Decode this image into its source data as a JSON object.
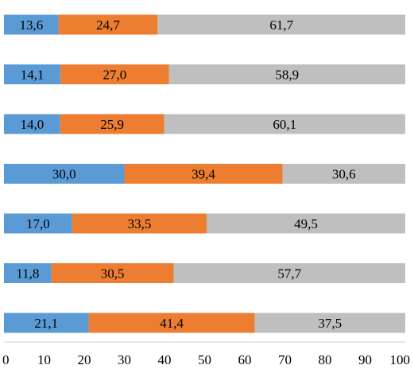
{
  "chart_data": {
    "type": "bar",
    "orientation": "horizontal",
    "stacked": true,
    "title": "",
    "xlabel": "",
    "ylabel": "",
    "xlim": [
      0,
      100
    ],
    "x_ticks": [
      "0",
      "10",
      "20",
      "30",
      "40",
      "50",
      "60",
      "70",
      "80",
      "90",
      "100"
    ],
    "grid": false,
    "legend": "none",
    "categories": [
      "",
      "",
      "",
      "",
      "",
      "",
      ""
    ],
    "series": [
      {
        "color": "#5b9bd5",
        "values": [
          13.6,
          14.1,
          14.0,
          30.0,
          17.0,
          11.8,
          21.1
        ],
        "labels": [
          "13,6",
          "14,1",
          "14,0",
          "30,0",
          "17,0",
          "11,8",
          "21,1"
        ]
      },
      {
        "color": "#ed7d31",
        "values": [
          24.7,
          27.0,
          25.9,
          39.4,
          33.5,
          30.5,
          41.4
        ],
        "labels": [
          "24,7",
          "27,0",
          "25,9",
          "39,4",
          "33,5",
          "30,5",
          "41,4"
        ]
      },
      {
        "color": "#bfbfbf",
        "values": [
          61.7,
          58.9,
          60.1,
          30.6,
          49.5,
          57.7,
          37.5
        ],
        "labels": [
          "61,7",
          "58,9",
          "60,1",
          "30,6",
          "49,5",
          "57,7",
          "37,5"
        ]
      }
    ]
  }
}
